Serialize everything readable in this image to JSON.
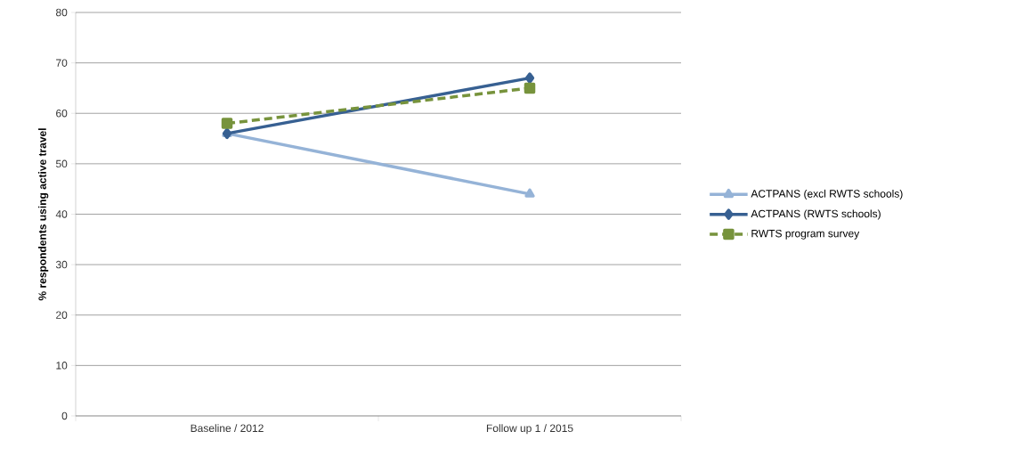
{
  "chart_data": {
    "type": "line",
    "ylabel": "% respondents using active travel",
    "categories": [
      "Baseline / 2012",
      "Follow up 1 / 2015"
    ],
    "series": [
      {
        "name": "ACTPANS (excl RWTS schools)",
        "color": "#95b3d7",
        "values": [
          56,
          44
        ],
        "marker": "triangle",
        "line_style": "solid"
      },
      {
        "name": "ACTPANS (RWTS schools)",
        "color": "#376092",
        "values": [
          56,
          67
        ],
        "marker": "diamond",
        "line_style": "solid"
      },
      {
        "name": "RWTS program survey",
        "color": "#77933c",
        "values": [
          58,
          65
        ],
        "marker": "square",
        "line_style": "dashed"
      }
    ],
    "ylim": [
      0,
      80
    ],
    "yticks": [
      0,
      10,
      20,
      30,
      40,
      50,
      60,
      70,
      80
    ],
    "grid": "y",
    "legend": "right"
  }
}
